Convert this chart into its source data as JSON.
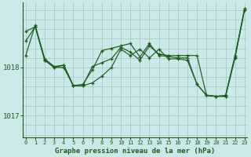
{
  "title": "Graphe pression niveau de la mer (hPa)",
  "background_color": "#cde8e8",
  "grid_color": "#a8c8c8",
  "line_color": "#1e5c1e",
  "x_labels": [
    "0",
    "1",
    "2",
    "3",
    "4",
    "5",
    "6",
    "7",
    "8",
    "9",
    "10",
    "11",
    "12",
    "13",
    "14",
    "15",
    "16",
    "17",
    "18",
    "19",
    "20",
    "21",
    "22",
    "23"
  ],
  "yticks": [
    1017,
    1018
  ],
  "ylim": [
    1016.55,
    1019.35
  ],
  "xlim": [
    -0.3,
    23.3
  ],
  "series1": [
    1018.55,
    1018.85,
    1018.15,
    1018.0,
    1018.0,
    1017.62,
    1017.62,
    1017.68,
    1017.82,
    1018.0,
    1018.38,
    1018.25,
    1018.38,
    1018.2,
    1018.38,
    1018.18,
    1018.18,
    1018.15,
    1017.65,
    1017.42,
    1017.4,
    1017.42,
    1018.25,
    1019.22
  ],
  "series2": [
    1018.75,
    1018.85,
    1018.15,
    1018.0,
    1018.05,
    1017.62,
    1017.65,
    1017.95,
    1018.35,
    1018.4,
    1018.45,
    1018.5,
    1018.22,
    1018.5,
    1018.25,
    1018.23,
    1018.2,
    1018.2,
    1017.65,
    1017.42,
    1017.4,
    1017.4,
    1018.22,
    1019.22
  ],
  "series3": [
    1018.25,
    1018.88,
    1018.18,
    1018.02,
    1018.05,
    1017.62,
    1017.62,
    1018.02,
    1018.1,
    1018.18,
    1018.42,
    1018.32,
    1018.15,
    1018.45,
    1018.28,
    1018.25,
    1018.25,
    1018.25,
    1018.25,
    1017.42,
    1017.4,
    1017.4,
    1018.2,
    1019.2
  ]
}
